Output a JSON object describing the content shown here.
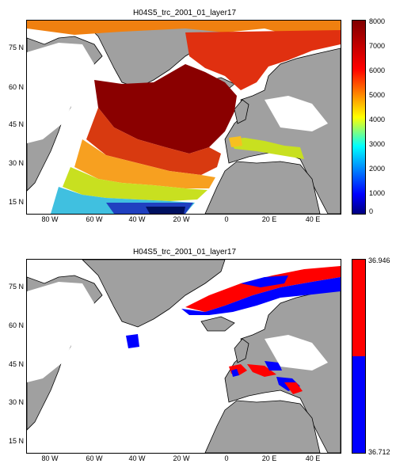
{
  "panels": [
    {
      "title": "H04S5_trc_2001_01_layer17",
      "colorbar_ticks": [
        "8000",
        "7000",
        "6000",
        "5000",
        "4000",
        "3000",
        "2000",
        "1000",
        "0"
      ],
      "colormap": "jet",
      "range": [
        0,
        8000
      ]
    },
    {
      "title": "H04S5_trc_2001_01_layer17",
      "colorbar_max_label": "36.946",
      "colorbar_min_label": "36.712",
      "colors": {
        "high": "#ff0000",
        "low": "#0000ff"
      },
      "range": [
        36.712,
        36.946
      ]
    }
  ],
  "axes": {
    "y_ticks": [
      "75 N",
      "60 N",
      "45 N",
      "30 N",
      "15 N"
    ],
    "x_ticks": [
      "80 W",
      "60 W",
      "40 W",
      "20 W",
      "0",
      "20 E",
      "40 E"
    ]
  },
  "colors": {
    "land": "#a0a0a0",
    "ocean_empty": "#ffffff",
    "coast": "#000000"
  }
}
